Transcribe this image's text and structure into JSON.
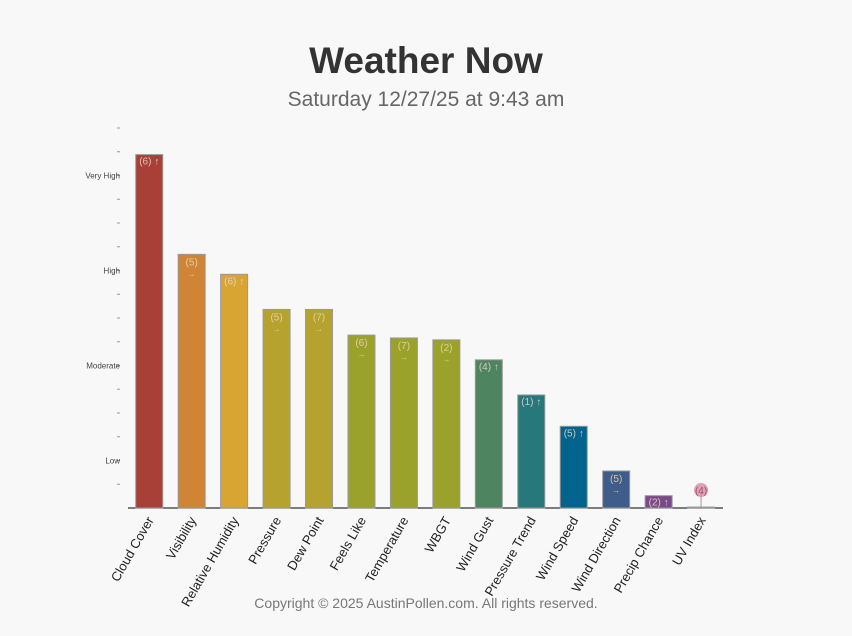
{
  "title": "Weather Now",
  "subtitle": "Saturday 12/27/25 at 9:43 am",
  "footer": "Copyright © 2025 AustinPollen.com.  All rights reserved.",
  "chart_data": {
    "type": "bar",
    "ylim": [
      0,
      4
    ],
    "y_tick_labels": [
      {
        "value": 0.5,
        "label": "Low"
      },
      {
        "value": 1.5,
        "label": "Moderate"
      },
      {
        "value": 2.5,
        "label": "High"
      },
      {
        "value": 3.5,
        "label": "Very High"
      }
    ],
    "categories": [
      "Cloud Cover",
      "Visibility",
      "Relative Humidity",
      "Pressure",
      "Dew Point",
      "Feels Like",
      "Temperature",
      "WBGT",
      "Wind Gust",
      "Pressure Trend",
      "Wind Speed",
      "Wind Direction",
      "Precip Chance",
      "UV Index"
    ],
    "values": [
      3.72,
      2.67,
      2.46,
      2.09,
      2.09,
      1.82,
      1.79,
      1.77,
      1.56,
      1.19,
      0.86,
      0.39,
      0.13,
      0.01
    ],
    "data_labels": [
      "(6) ↑",
      "(5) →",
      "(6) ↑",
      "(5) →",
      "(7) →",
      "(6) →",
      "(7) →",
      "(2) →",
      "(4) ↑",
      "(1) ↑",
      "(5) ↑",
      "(5) →",
      "(2) ↑",
      "(4)"
    ],
    "colors": [
      "#a84038",
      "#cf8535",
      "#d8a532",
      "#b6a22f",
      "#b6a22f",
      "#9ba22b",
      "#9ba22b",
      "#9ba22b",
      "#4e8560",
      "#27787a",
      "#00648c",
      "#3e5d8a",
      "#7a4a88",
      "#d88aa0"
    ]
  }
}
